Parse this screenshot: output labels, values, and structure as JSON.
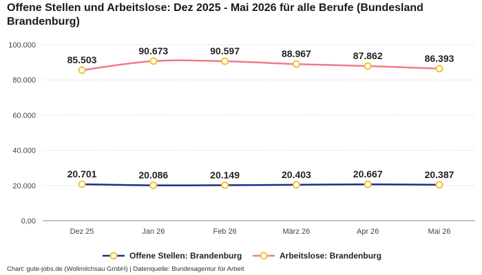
{
  "title": "Offene Stellen und Arbeitslose: Dez 2025 - Mai 2026 für alle Berufe (Bundesland Brandenburg)",
  "source": "Chart: gute-jobs.de (Wollmilchsau GmbH) | Datenquelle: Bundesagentur für Arbeit",
  "colors": {
    "offene_line": "#1f2a8c",
    "arbeitslose_line": "#f07a8c",
    "marker_stroke": "#f2c230",
    "marker_fill": "#ffffff",
    "grid": "#d9d9d9"
  },
  "chart_data": {
    "type": "line",
    "categories": [
      "Dez 25",
      "Jan 26",
      "Feb 26",
      "März 26",
      "Apr 26",
      "Mai 26"
    ],
    "ylim": [
      0,
      100000
    ],
    "yticks": [
      0,
      20000,
      40000,
      60000,
      80000,
      100000
    ],
    "ytick_labels": [
      "0,00",
      "20.000",
      "40.000",
      "60.000",
      "80.000",
      "100.000"
    ],
    "grid": true,
    "legend_position": "bottom",
    "series": [
      {
        "name": "Offene Stellen: Brandenburg",
        "values": [
          20701,
          20086,
          20149,
          20403,
          20667,
          20387
        ],
        "labels": [
          "20.701",
          "20.086",
          "20.149",
          "20.403",
          "20.667",
          "20.387"
        ]
      },
      {
        "name": "Arbeitslose: Brandenburg",
        "values": [
          85503,
          90673,
          90597,
          88967,
          87862,
          86393
        ],
        "labels": [
          "85.503",
          "90.673",
          "90.597",
          "88.967",
          "87.862",
          "86.393"
        ]
      }
    ]
  }
}
